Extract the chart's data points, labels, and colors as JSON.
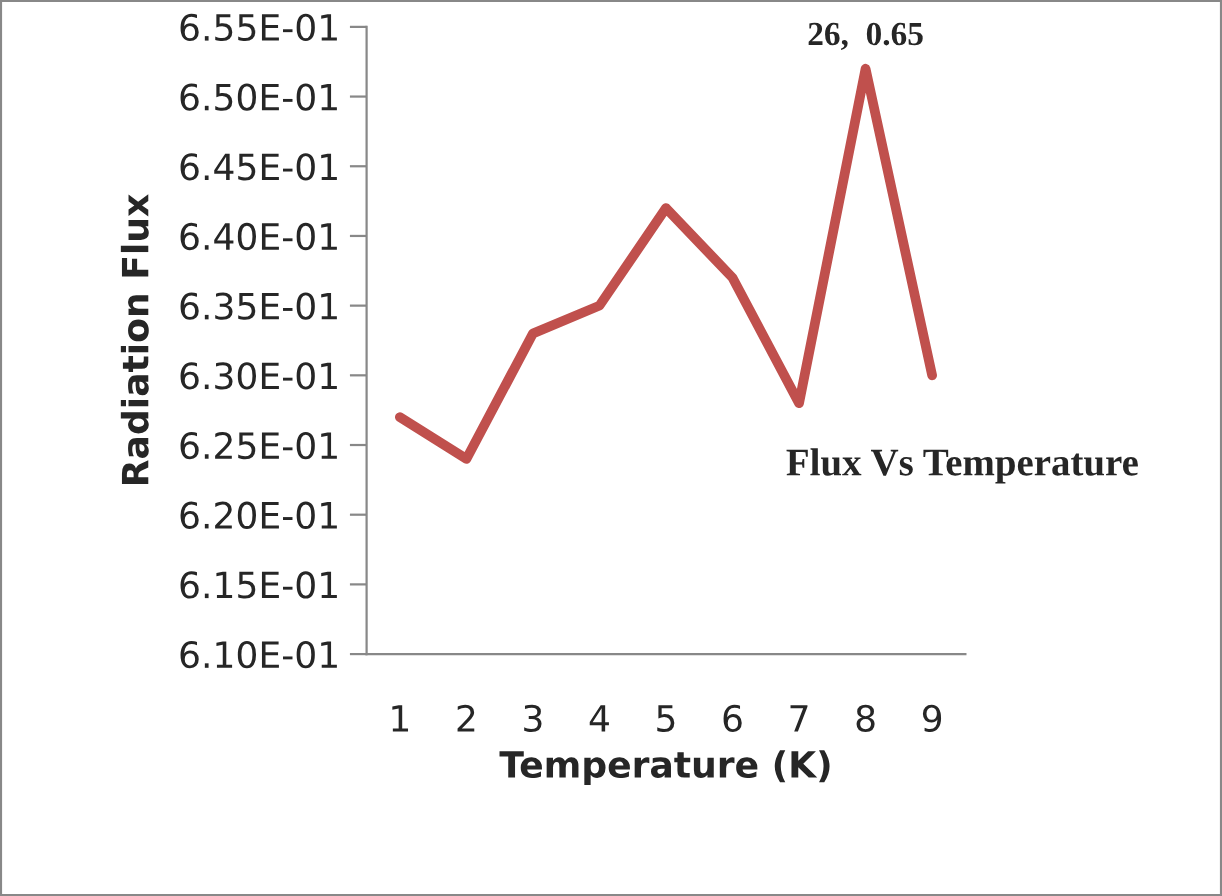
{
  "chart_data": {
    "type": "line",
    "title": "Flux Vs Temperature",
    "xlabel": "Temperature (K)",
    "ylabel": "Radiation Flux",
    "categories": [
      "1",
      "2",
      "3",
      "4",
      "5",
      "6",
      "7",
      "8",
      "9"
    ],
    "series": [
      {
        "color": "#c0504d",
        "values": [
          0.627,
          0.624,
          0.633,
          0.635,
          0.642,
          0.637,
          0.628,
          0.652,
          0.63
        ]
      }
    ],
    "ylim": [
      0.61,
      0.655
    ],
    "yticks": [
      {
        "value": 0.61,
        "label": "6.10E-01"
      },
      {
        "value": 0.615,
        "label": "6.15E-01"
      },
      {
        "value": 0.62,
        "label": "6.20E-01"
      },
      {
        "value": 0.625,
        "label": "6.25E-01"
      },
      {
        "value": 0.63,
        "label": "6.30E-01"
      },
      {
        "value": 0.635,
        "label": "6.35E-01"
      },
      {
        "value": 0.64,
        "label": "6.40E-01"
      },
      {
        "value": 0.645,
        "label": "6.45E-01"
      },
      {
        "value": 0.65,
        "label": "6.50E-01"
      },
      {
        "value": 0.655,
        "label": "6.55E-01"
      }
    ],
    "annotations": [
      {
        "text": "26,  0.65",
        "x": "8",
        "y": 0.652
      }
    ],
    "grid": false,
    "legend": false,
    "marker": "none",
    "line_style": "solid"
  }
}
